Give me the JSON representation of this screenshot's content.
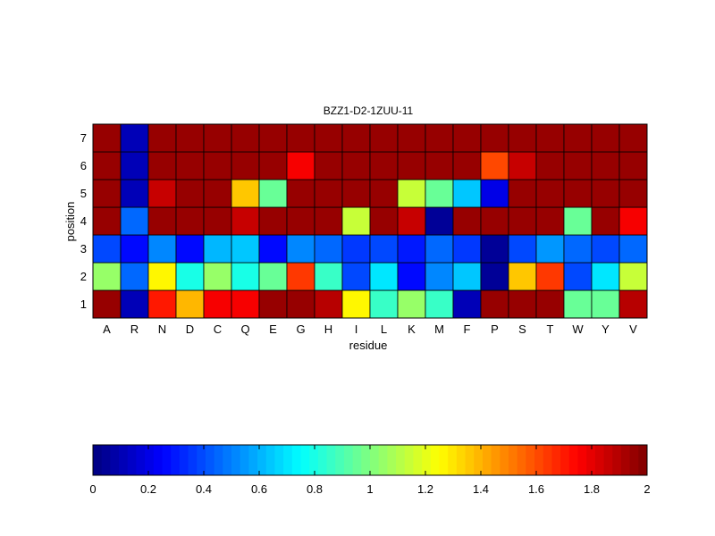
{
  "chart_data": {
    "type": "heatmap",
    "title": "BZZ1-D2-1ZUU-11",
    "xlabel": "residue",
    "ylabel": "position",
    "x_categories": [
      "A",
      "R",
      "N",
      "D",
      "C",
      "Q",
      "E",
      "G",
      "H",
      "I",
      "L",
      "K",
      "M",
      "F",
      "P",
      "S",
      "T",
      "W",
      "Y",
      "V"
    ],
    "y_categories": [
      "1",
      "2",
      "3",
      "4",
      "5",
      "6",
      "7"
    ],
    "values": [
      [
        1.95,
        0.1,
        1.7,
        1.4,
        1.75,
        1.75,
        1.95,
        1.95,
        1.9,
        1.25,
        0.85,
        1.05,
        0.85,
        0.1,
        1.95,
        1.95,
        1.95,
        0.95,
        0.95,
        1.9
      ],
      [
        1.05,
        0.45,
        1.25,
        0.8,
        1.05,
        0.8,
        0.95,
        1.65,
        0.85,
        0.4,
        0.7,
        0.25,
        0.5,
        0.65,
        0.05,
        1.35,
        1.65,
        0.4,
        0.7,
        1.15
      ],
      [
        0.4,
        0.25,
        0.5,
        0.25,
        0.6,
        0.65,
        0.25,
        0.5,
        0.45,
        0.35,
        0.4,
        0.3,
        0.45,
        0.35,
        0.05,
        0.4,
        0.55,
        0.45,
        0.4,
        0.45
      ],
      [
        1.95,
        0.45,
        1.95,
        1.95,
        1.95,
        1.85,
        1.95,
        1.95,
        1.95,
        1.15,
        1.95,
        1.85,
        0.05,
        1.95,
        1.95,
        1.95,
        1.95,
        0.95,
        1.95,
        1.75
      ],
      [
        1.95,
        0.1,
        1.85,
        1.95,
        1.95,
        1.35,
        0.95,
        1.95,
        1.95,
        1.95,
        1.95,
        1.15,
        0.95,
        0.65,
        0.2,
        1.95,
        1.95,
        1.95,
        1.95,
        1.95
      ],
      [
        1.95,
        0.1,
        1.95,
        1.95,
        1.95,
        1.95,
        1.95,
        1.75,
        1.95,
        1.95,
        1.95,
        1.95,
        1.95,
        1.95,
        1.6,
        1.85,
        1.95,
        1.95,
        1.95,
        1.95
      ],
      [
        1.95,
        0.1,
        1.95,
        1.95,
        1.95,
        1.95,
        1.95,
        1.95,
        1.95,
        1.95,
        1.95,
        1.95,
        1.95,
        1.95,
        1.95,
        1.95,
        1.95,
        1.95,
        1.95,
        1.95
      ]
    ],
    "colormap": "jet",
    "clim": [
      0,
      2
    ],
    "grid": true,
    "colorbar": {
      "placement": "bottom",
      "ticks": [
        "0",
        "0.2",
        "0.4",
        "0.6",
        "0.8",
        "1",
        "1.2",
        "1.4",
        "1.6",
        "1.8",
        "2"
      ],
      "levels": 64
    }
  }
}
